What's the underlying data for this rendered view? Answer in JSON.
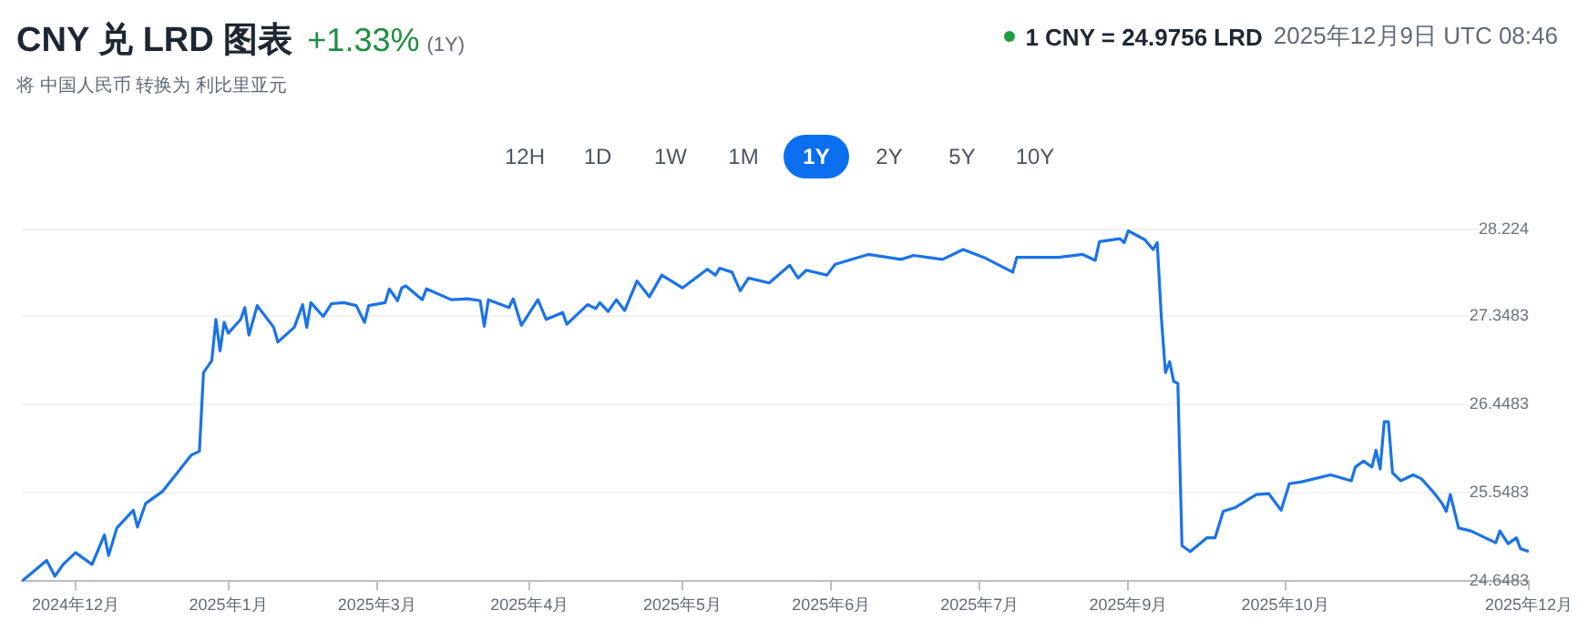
{
  "chart_data": {
    "type": "line",
    "title": "CNY 兑 LRD 图表",
    "subtitle": "将 中国人民币 转换为 利比里亚元",
    "annotations": [
      "+1.33%",
      "(1Y)",
      "1 CNY = 24.9756 LRD",
      "2025年12月9日 UTC 08:46",
      "12H",
      "1D",
      "1W",
      "1M",
      "1Y",
      "2Y",
      "5Y",
      "10Y"
    ],
    "x": [
      "2024-12-09",
      "2024-12-11",
      "2024-12-15",
      "2024-12-17",
      "2024-12-19",
      "2024-12-22",
      "2024-12-26",
      "2024-12-29",
      "2024-12-30",
      "2025-01-01",
      "2025-01-05",
      "2025-01-06",
      "2025-01-08",
      "2025-01-12",
      "2025-01-16",
      "2025-01-19",
      "2025-01-21",
      "2025-01-22",
      "2025-01-24",
      "2025-01-25",
      "2025-01-26",
      "2025-01-27",
      "2025-01-28",
      "2025-01-31",
      "2025-02-01",
      "2025-02-02",
      "2025-02-04",
      "2025-02-08",
      "2025-02-09",
      "2025-02-13",
      "2025-02-15",
      "2025-02-16",
      "2025-02-17",
      "2025-02-20",
      "2025-02-22",
      "2025-02-25",
      "2025-02-28",
      "2025-03-02",
      "2025-03-03",
      "2025-03-07",
      "2025-03-08",
      "2025-03-10",
      "2025-03-11",
      "2025-03-12",
      "2025-03-16",
      "2025-03-17",
      "2025-03-23",
      "2025-03-27",
      "2025-03-30",
      "2025-03-31",
      "2025-04-01",
      "2025-04-06",
      "2025-04-07",
      "2025-04-09",
      "2025-04-13",
      "2025-04-15",
      "2025-04-19",
      "2025-04-20",
      "2025-04-25",
      "2025-04-27",
      "2025-04-28",
      "2025-04-30",
      "2025-05-02",
      "2025-05-04",
      "2025-05-07",
      "2025-05-10",
      "2025-05-13",
      "2025-05-18",
      "2025-05-24",
      "2025-05-26",
      "2025-05-27",
      "2025-05-30",
      "2025-06-01",
      "2025-06-03",
      "2025-06-08",
      "2025-06-13",
      "2025-06-15",
      "2025-06-17",
      "2025-06-22",
      "2025-06-24",
      "2025-07-02",
      "2025-07-10",
      "2025-07-13",
      "2025-07-20",
      "2025-07-25",
      "2025-07-30",
      "2025-08-06",
      "2025-08-07",
      "2025-08-17",
      "2025-08-23",
      "2025-08-26",
      "2025-08-27",
      "2025-09-01",
      "2025-09-02",
      "2025-09-03",
      "2025-09-07",
      "2025-09-09",
      "2025-09-10",
      "2025-09-11",
      "2025-09-12",
      "2025-09-13",
      "2025-09-14",
      "2025-09-15",
      "2025-09-16",
      "2025-09-18",
      "2025-09-22",
      "2025-09-24",
      "2025-09-26",
      "2025-09-29",
      "2025-10-04",
      "2025-10-07",
      "2025-10-10",
      "2025-10-12",
      "2025-10-15",
      "2025-10-22",
      "2025-10-27",
      "2025-10-28",
      "2025-10-30",
      "2025-11-01",
      "2025-11-02",
      "2025-11-03",
      "2025-11-04",
      "2025-11-05",
      "2025-11-06",
      "2025-11-08",
      "2025-11-11",
      "2025-11-13",
      "2025-11-16",
      "2025-11-18",
      "2025-11-19",
      "2025-11-20",
      "2025-11-22",
      "2025-11-25",
      "2025-11-28",
      "2025-12-01",
      "2025-12-02",
      "2025-12-04",
      "2025-12-06",
      "2025-12-07",
      "2025-12-09"
    ],
    "series": [
      {
        "color": "#1a73e8",
        "values": [
          24.65,
          24.72,
          24.86,
          24.7,
          24.82,
          24.94,
          24.82,
          25.12,
          24.91,
          25.19,
          25.37,
          25.2,
          25.44,
          25.56,
          25.77,
          25.93,
          25.97,
          26.77,
          26.89,
          27.31,
          26.99,
          27.28,
          27.17,
          27.31,
          27.43,
          27.15,
          27.45,
          27.23,
          27.08,
          27.23,
          27.46,
          27.23,
          27.48,
          27.34,
          27.47,
          27.48,
          27.45,
          27.28,
          27.45,
          27.48,
          27.62,
          27.5,
          27.63,
          27.65,
          27.51,
          27.62,
          27.51,
          27.52,
          27.5,
          27.24,
          27.51,
          27.43,
          27.52,
          27.25,
          27.51,
          27.31,
          27.38,
          27.26,
          27.46,
          27.42,
          27.48,
          27.39,
          27.51,
          27.4,
          27.7,
          27.54,
          27.76,
          27.63,
          27.82,
          27.76,
          27.83,
          27.79,
          27.6,
          27.73,
          27.68,
          27.86,
          27.73,
          27.81,
          27.76,
          27.87,
          27.97,
          27.92,
          27.96,
          27.92,
          28.02,
          27.94,
          27.79,
          27.94,
          27.94,
          27.97,
          27.91,
          28.1,
          28.13,
          28.09,
          28.21,
          28.12,
          28.02,
          28.09,
          27.33,
          26.77,
          26.88,
          26.68,
          26.66,
          25.01,
          24.95,
          25.09,
          25.09,
          25.36,
          25.4,
          25.53,
          25.54,
          25.37,
          25.64,
          25.66,
          25.73,
          25.67,
          25.81,
          25.87,
          25.81,
          25.98,
          25.79,
          26.27,
          26.27,
          25.75,
          25.67,
          25.73,
          25.69,
          25.55,
          25.44,
          25.36,
          25.53,
          25.19,
          25.16,
          25.1,
          25.04,
          25.16,
          25.03,
          25.09,
          24.98,
          24.95
        ]
      }
    ],
    "xlim": [
      "2024-12-09",
      "2025-12-09"
    ],
    "xticks": [
      {
        "value": "2024-12-22",
        "label": "2024年12月"
      },
      {
        "value": "2025-01-28",
        "label": "2025年1月"
      },
      {
        "value": "2025-03-05",
        "label": "2025年3月"
      },
      {
        "value": "2025-04-11",
        "label": "2025年4月"
      },
      {
        "value": "2025-05-18",
        "label": "2025年5月"
      },
      {
        "value": "2025-06-23",
        "label": "2025年6月"
      },
      {
        "value": "2025-07-29",
        "label": "2025年7月"
      },
      {
        "value": "2025-09-03",
        "label": "2025年9月"
      },
      {
        "value": "2025-10-11",
        "label": "2025年10月"
      },
      {
        "value": "2025-12-09",
        "label": "2025年12月"
      }
    ],
    "ylim": [
      24.6483,
      28.224
    ],
    "yticks": [
      24.6483,
      25.5483,
      26.4483,
      27.3483,
      28.224
    ],
    "grid": "y",
    "legend": false,
    "marker": "none",
    "line_style": "solid"
  }
}
